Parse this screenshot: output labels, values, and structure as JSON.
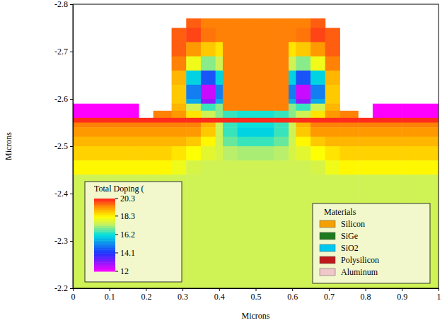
{
  "chart_data": {
    "type": "heatmap",
    "xlabel": "Microns",
    "ylabel": "Microns",
    "xlim": [
      0,
      1
    ],
    "xticks": [
      0,
      0.1,
      0.2,
      0.3,
      0.4,
      0.5,
      0.6,
      0.7,
      0.8,
      0.9,
      1
    ],
    "ylim": [
      -2.8,
      -2.2
    ],
    "yticks": [
      -2.8,
      -2.7,
      -2.6,
      -2.5,
      -2.4,
      -2.3,
      -2.2
    ],
    "x": [
      0,
      0.1,
      0.18,
      0.22,
      0.27,
      0.31,
      0.35,
      0.39,
      0.41,
      0.45,
      0.5,
      0.55,
      0.59,
      0.61,
      0.65,
      0.69,
      0.73,
      0.78,
      0.82,
      0.9,
      1
    ],
    "y": [
      -2.8,
      -2.77,
      -2.75,
      -2.72,
      -2.69,
      -2.66,
      -2.63,
      -2.6,
      -2.59,
      -2.575,
      -2.56,
      -2.55,
      -2.54,
      -2.52,
      -2.5,
      -2.47,
      -2.44,
      -2.4,
      -2.3,
      -2.2
    ],
    "cells": [
      [
        null,
        null,
        null,
        null,
        null,
        null,
        null,
        null,
        null,
        null,
        null,
        null,
        null,
        null,
        null,
        null,
        null,
        null,
        null,
        null
      ],
      [
        null,
        null,
        null,
        null,
        null,
        19.8,
        19.5,
        19.5,
        19.5,
        19.5,
        19.5,
        19.5,
        19.5,
        19.5,
        19.8,
        null,
        null,
        null,
        null,
        null
      ],
      [
        null,
        null,
        null,
        null,
        19.8,
        20.0,
        19.6,
        19.5,
        19.5,
        19.5,
        19.5,
        19.5,
        19.5,
        19.6,
        20.0,
        19.8,
        null,
        null,
        null,
        null
      ],
      [
        null,
        null,
        null,
        null,
        19.8,
        19.3,
        18.8,
        18.5,
        19.5,
        19.5,
        19.5,
        19.5,
        18.5,
        18.8,
        19.3,
        19.8,
        null,
        null,
        null,
        null
      ],
      [
        null,
        null,
        null,
        null,
        19.5,
        18.0,
        17.0,
        17.5,
        19.5,
        19.5,
        19.5,
        19.5,
        17.5,
        17.0,
        18.0,
        19.5,
        null,
        null,
        null,
        null
      ],
      [
        null,
        null,
        null,
        null,
        19.0,
        16.0,
        14.5,
        16.0,
        19.5,
        19.5,
        19.5,
        19.5,
        16.0,
        14.5,
        16.0,
        19.0,
        null,
        null,
        null,
        null
      ],
      [
        null,
        null,
        null,
        null,
        18.8,
        15.0,
        12.5,
        15.0,
        19.5,
        19.5,
        19.5,
        19.5,
        15.0,
        12.5,
        15.0,
        18.8,
        null,
        null,
        null,
        null
      ],
      [
        null,
        null,
        null,
        null,
        18.8,
        15.5,
        13.0,
        15.5,
        19.5,
        19.5,
        19.5,
        19.5,
        15.5,
        13.0,
        15.5,
        18.8,
        null,
        null,
        null,
        null
      ],
      [
        12,
        12,
        null,
        null,
        19.0,
        17.5,
        16.5,
        17.0,
        19.5,
        19.5,
        19.5,
        19.5,
        17.0,
        16.5,
        17.5,
        19.0,
        null,
        null,
        12,
        12
      ],
      [
        12,
        12,
        null,
        19.5,
        19.3,
        18.5,
        17.5,
        17.0,
        16.5,
        16.3,
        16.3,
        16.5,
        17.0,
        17.5,
        18.5,
        19.3,
        19.5,
        null,
        12,
        12
      ],
      [
        20.2,
        20.2,
        20.2,
        20.2,
        20.2,
        20.2,
        20.2,
        20.2,
        20.2,
        20.2,
        20.2,
        20.2,
        20.2,
        20.2,
        20.2,
        20.2,
        20.2,
        20.2,
        20.2,
        20.2
      ],
      [
        19.5,
        19.5,
        19.5,
        19.5,
        19.5,
        19.5,
        19.0,
        17.5,
        16.5,
        16.2,
        16.2,
        16.5,
        17.5,
        19.0,
        19.5,
        19.5,
        19.5,
        19.5,
        19.5,
        19.5
      ],
      [
        19.3,
        19.3,
        19.3,
        19.3,
        19.3,
        19.3,
        18.8,
        17.5,
        16.5,
        16.0,
        16.0,
        16.5,
        17.5,
        18.8,
        19.3,
        19.3,
        19.3,
        19.3,
        19.3,
        19.3
      ],
      [
        19.0,
        19.0,
        19.0,
        19.0,
        19.0,
        18.8,
        18.3,
        17.5,
        16.8,
        16.5,
        16.5,
        16.8,
        17.5,
        18.3,
        18.8,
        19.0,
        19.0,
        19.0,
        19.0,
        19.0
      ],
      [
        18.7,
        18.7,
        18.7,
        18.7,
        18.5,
        18.2,
        17.8,
        17.6,
        17.3,
        17.2,
        17.2,
        17.3,
        17.6,
        17.8,
        18.2,
        18.5,
        18.7,
        18.7,
        18.7,
        18.7
      ],
      [
        18.3,
        18.3,
        18.3,
        18.3,
        18.0,
        17.6,
        17.5,
        17.5,
        17.5,
        17.5,
        17.5,
        17.5,
        17.5,
        17.5,
        17.6,
        18.0,
        18.3,
        18.3,
        18.3,
        18.3
      ],
      [
        17.5,
        17.5,
        17.5,
        17.5,
        17.5,
        17.5,
        17.5,
        17.5,
        17.5,
        17.5,
        17.5,
        17.5,
        17.5,
        17.5,
        17.5,
        17.5,
        17.5,
        17.5,
        17.5,
        17.5
      ],
      [
        17.5,
        17.5,
        17.5,
        17.5,
        17.5,
        17.5,
        17.5,
        17.5,
        17.5,
        17.5,
        17.5,
        17.5,
        17.5,
        17.5,
        17.5,
        17.5,
        17.5,
        17.5,
        17.5,
        17.5
      ],
      [
        17.5,
        17.5,
        17.5,
        17.5,
        17.5,
        17.5,
        17.5,
        17.5,
        17.5,
        17.5,
        17.5,
        17.5,
        17.5,
        17.5,
        17.5,
        17.5,
        17.5,
        17.5,
        17.5,
        17.5
      ]
    ],
    "colorbar": {
      "title": "Total Doping (",
      "range": [
        12,
        20.3
      ],
      "ticks": [
        20.3,
        18.3,
        16.2,
        14.1,
        12
      ]
    },
    "legend": "lower right",
    "legend_title": "Materials",
    "materials": [
      {
        "name": "Silicon",
        "color": "#f5a000"
      },
      {
        "name": "SiGe",
        "color": "#1e7a1e"
      },
      {
        "name": "SiO2",
        "color": "#00c8f0"
      },
      {
        "name": "Polysilicon",
        "color": "#c0181b"
      },
      {
        "name": "Aluminum",
        "color": "#f0c8c8"
      }
    ]
  }
}
